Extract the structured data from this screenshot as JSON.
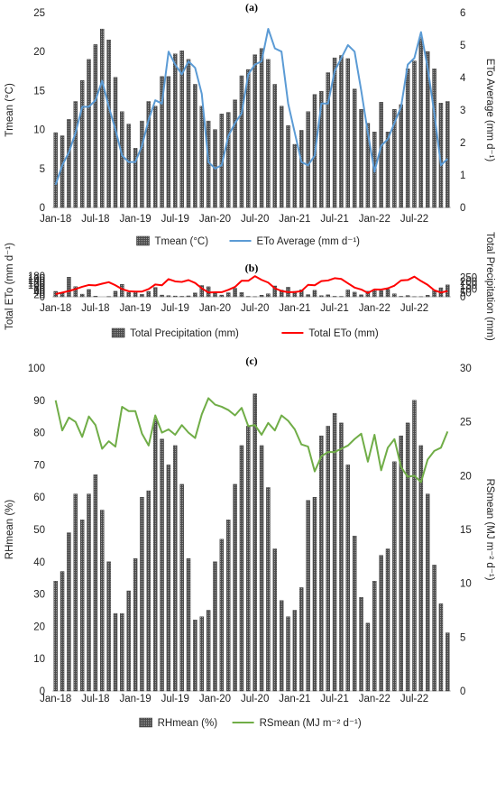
{
  "chart_data": [
    {
      "type": "bar",
      "title": "(a)",
      "ylabel": "Tmean (°C)",
      "y2label": "ETo Average (mm d⁻¹)",
      "ylim": [
        0,
        25
      ],
      "yticks": [
        "0",
        "5",
        "10",
        "15",
        "20",
        "25"
      ],
      "y2lim": [
        0,
        6
      ],
      "y2ticks": [
        "0",
        "1",
        "2",
        "3",
        "4",
        "5",
        "6"
      ],
      "xtick_labels": [
        "Jan-18",
        "Jul-18",
        "Jan-19",
        "Jul-19",
        "Jan-20",
        "Jul-20",
        "Jan-21",
        "Jul-21",
        "Jan-22",
        "Jul-22"
      ],
      "legend": {
        "position": "bottom"
      },
      "colors": {
        "bar": "#555555",
        "line": "#5b9bd5"
      },
      "series": [
        {
          "name": "Tmean (°C)",
          "kind": "bar",
          "axis": "left",
          "values": [
            9.6,
            9.2,
            11.3,
            13.6,
            16.3,
            19.0,
            20.9,
            22.9,
            21.5,
            16.7,
            12.3,
            10.7,
            7.6,
            11.1,
            13.6,
            13.0,
            16.8,
            16.8,
            19.7,
            20.1,
            19.0,
            15.8,
            13.0,
            11.1,
            10.0,
            12.0,
            12.2,
            13.8,
            16.9,
            17.7,
            19.6,
            20.4,
            19.0,
            15.8,
            13.0,
            10.5,
            8.1,
            9.9,
            12.3,
            14.5,
            14.9,
            17.3,
            19.2,
            19.5,
            19.1,
            15.2,
            12.6,
            10.8,
            9.7,
            13.5,
            9.7,
            12.6,
            13.2,
            17.8,
            18.8,
            21.8,
            20.0,
            17.8,
            13.4,
            13.6
          ]
        },
        {
          "name": "ETo Average (mm d⁻¹)",
          "kind": "line",
          "axis": "right",
          "values": [
            0.7,
            1.3,
            1.7,
            2.3,
            3.1,
            3.1,
            3.3,
            3.9,
            3.1,
            2.4,
            1.6,
            1.4,
            1.4,
            1.9,
            2.7,
            3.3,
            3.2,
            4.8,
            4.4,
            4.1,
            4.5,
            4.3,
            3.5,
            1.4,
            1.2,
            1.3,
            2.2,
            2.6,
            2.9,
            4.1,
            4.4,
            4.5,
            5.5,
            4.9,
            4.8,
            3.2,
            2.3,
            1.4,
            1.3,
            1.6,
            3.2,
            3.2,
            4.2,
            4.6,
            5.0,
            4.8,
            3.6,
            2.3,
            1.1,
            1.9,
            2.1,
            2.6,
            3.1,
            4.4,
            4.6,
            5.4,
            4.3,
            2.9,
            1.3,
            1.5
          ]
        }
      ]
    },
    {
      "type": "bar",
      "title": "(b)",
      "ylabel": "Total ETo (mm d⁻¹)",
      "y2label": "Total Precipitation (mm)",
      "ylim": [
        0,
        180
      ],
      "yticks": [
        "0",
        "20",
        "40",
        "60",
        "80",
        "100",
        "120",
        "140",
        "160",
        "180"
      ],
      "y2lim": [
        0,
        270
      ],
      "y2ticks": [
        "0",
        "50",
        "100",
        "150",
        "200",
        "250"
      ],
      "xtick_labels": [
        "Jan-18",
        "Jul-18",
        "Jan-19",
        "Jul-19",
        "Jan-20",
        "Jul-20",
        "Jan-21",
        "Jul-21",
        "Jan-22",
        "Jul-22"
      ],
      "legend": {
        "position": "bottom"
      },
      "colors": {
        "bar": "#555555",
        "line": "#ff0000"
      },
      "series": [
        {
          "name": "Total Precipitation (mm)",
          "kind": "bar",
          "axis": "left",
          "values": [
            47,
            37,
            170,
            88,
            23,
            63,
            6,
            0,
            2,
            48,
            108,
            38,
            48,
            22,
            46,
            81,
            15,
            10,
            7,
            4,
            8,
            33,
            98,
            87,
            33,
            15,
            35,
            74,
            37,
            3,
            1,
            14,
            26,
            94,
            58,
            83,
            47,
            60,
            19,
            56,
            10,
            17,
            4,
            3,
            59,
            40,
            17,
            48,
            63,
            52,
            65,
            26,
            4,
            11,
            1,
            1,
            13,
            58,
            78,
            103
          ]
        },
        {
          "name": "Total ETo  (mm)",
          "kind": "line",
          "axis": "right",
          "values": [
            35,
            55,
            75,
            100,
            130,
            153,
            148,
            170,
            190,
            150,
            100,
            72,
            68,
            68,
            100,
            160,
            150,
            230,
            200,
            193,
            217,
            180,
            110,
            55,
            58,
            60,
            90,
            128,
            208,
            208,
            268,
            220,
            185,
            110,
            75,
            60,
            62,
            74,
            155,
            150,
            204,
            212,
            242,
            232,
            175,
            120,
            95,
            50,
            95,
            94,
            110,
            145,
            213,
            218,
            262,
            205,
            155,
            85,
            55,
            75
          ]
        }
      ]
    },
    {
      "type": "bar",
      "title": "(c)",
      "ylabel": "RHmean (%)",
      "y2label": "RSmean (MJ m⁻² d⁻¹)",
      "ylim": [
        0,
        100
      ],
      "yticks": [
        "0",
        "10",
        "20",
        "30",
        "40",
        "50",
        "60",
        "70",
        "80",
        "90",
        "100"
      ],
      "y2lim": [
        0,
        30
      ],
      "y2ticks": [
        "0",
        "5",
        "10",
        "15",
        "20",
        "25",
        "30"
      ],
      "xtick_labels": [
        "Jan-18",
        "Jul-18",
        "Jan-19",
        "Jul-19",
        "Jan-20",
        "Jul-20",
        "Jan-21",
        "Jul-21",
        "Jan-22",
        "Jul-22"
      ],
      "legend": {
        "position": "bottom"
      },
      "colors": {
        "bar": "#555555",
        "line": "#70ad47"
      },
      "series": [
        {
          "name": "RHmean (%)",
          "kind": "bar",
          "axis": "left",
          "values": [
            34,
            37,
            49,
            61,
            53,
            61,
            67,
            56,
            40,
            24,
            24,
            31,
            41,
            60,
            62,
            84,
            78,
            70,
            76,
            64,
            41,
            22,
            23,
            25,
            40,
            47,
            53,
            64,
            76,
            82,
            92,
            76,
            63,
            44,
            28,
            23,
            25,
            32,
            59,
            60,
            79,
            82,
            86,
            83,
            70,
            48,
            29,
            21,
            34,
            42,
            44,
            71,
            79,
            83,
            90,
            76,
            61,
            39,
            27,
            18
          ]
        },
        {
          "name": "RSmean (MJ m⁻² d⁻¹)",
          "kind": "line",
          "axis": "right",
          "values": [
            27.0,
            24.2,
            25.4,
            25.0,
            23.6,
            25.5,
            24.7,
            22.5,
            23.2,
            22.7,
            26.4,
            26.0,
            26.0,
            23.9,
            22.8,
            25.6,
            24.0,
            24.3,
            23.8,
            24.7,
            24.0,
            23.5,
            25.7,
            27.2,
            26.6,
            26.4,
            26.1,
            25.6,
            26.3,
            24.6,
            24.7,
            23.8,
            24.9,
            24.2,
            25.6,
            25.1,
            24.3,
            22.9,
            22.7,
            20.4,
            21.8,
            22.2,
            22.2,
            22.5,
            22.8,
            23.4,
            23.9,
            21.3,
            23.8,
            20.5,
            22.6,
            23.4,
            20.8,
            19.9,
            20.0,
            19.4,
            21.5,
            22.3,
            22.6,
            24.1
          ]
        }
      ]
    }
  ]
}
